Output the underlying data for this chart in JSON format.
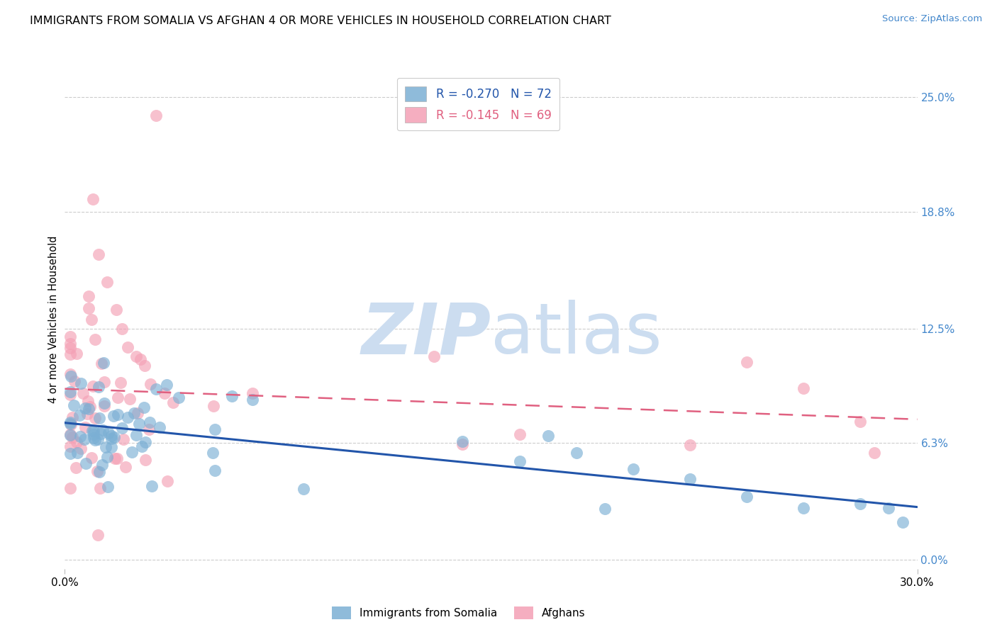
{
  "title": "IMMIGRANTS FROM SOMALIA VS AFGHAN 4 OR MORE VEHICLES IN HOUSEHOLD CORRELATION CHART",
  "source": "Source: ZipAtlas.com",
  "ylabel": "4 or more Vehicles in Household",
  "legend_somalia": "R = -0.270   N = 72",
  "legend_afghan": "R = -0.145   N = 69",
  "legend_label_somalia": "Immigrants from Somalia",
  "legend_label_afghan": "Afghans",
  "somalia_color": "#7bafd4",
  "afghan_color": "#f4a0b5",
  "somalia_line_color": "#2255aa",
  "afghan_line_color": "#e06080",
  "background_color": "#ffffff",
  "grid_color": "#cccccc",
  "watermark_color": "#ccddf0",
  "right_tick_color": "#4488cc",
  "xlim": [
    0.0,
    0.3
  ],
  "ylim": [
    -0.005,
    0.265
  ],
  "ytick_vals": [
    0.0,
    0.063,
    0.125,
    0.188,
    0.25
  ],
  "ytick_labels": [
    "0.0%",
    "6.3%",
    "12.5%",
    "18.8%",
    "25.0%"
  ],
  "xticks": [
    0.0,
    0.3
  ],
  "xtick_labels": [
    "0.0%",
    "30.0%"
  ]
}
